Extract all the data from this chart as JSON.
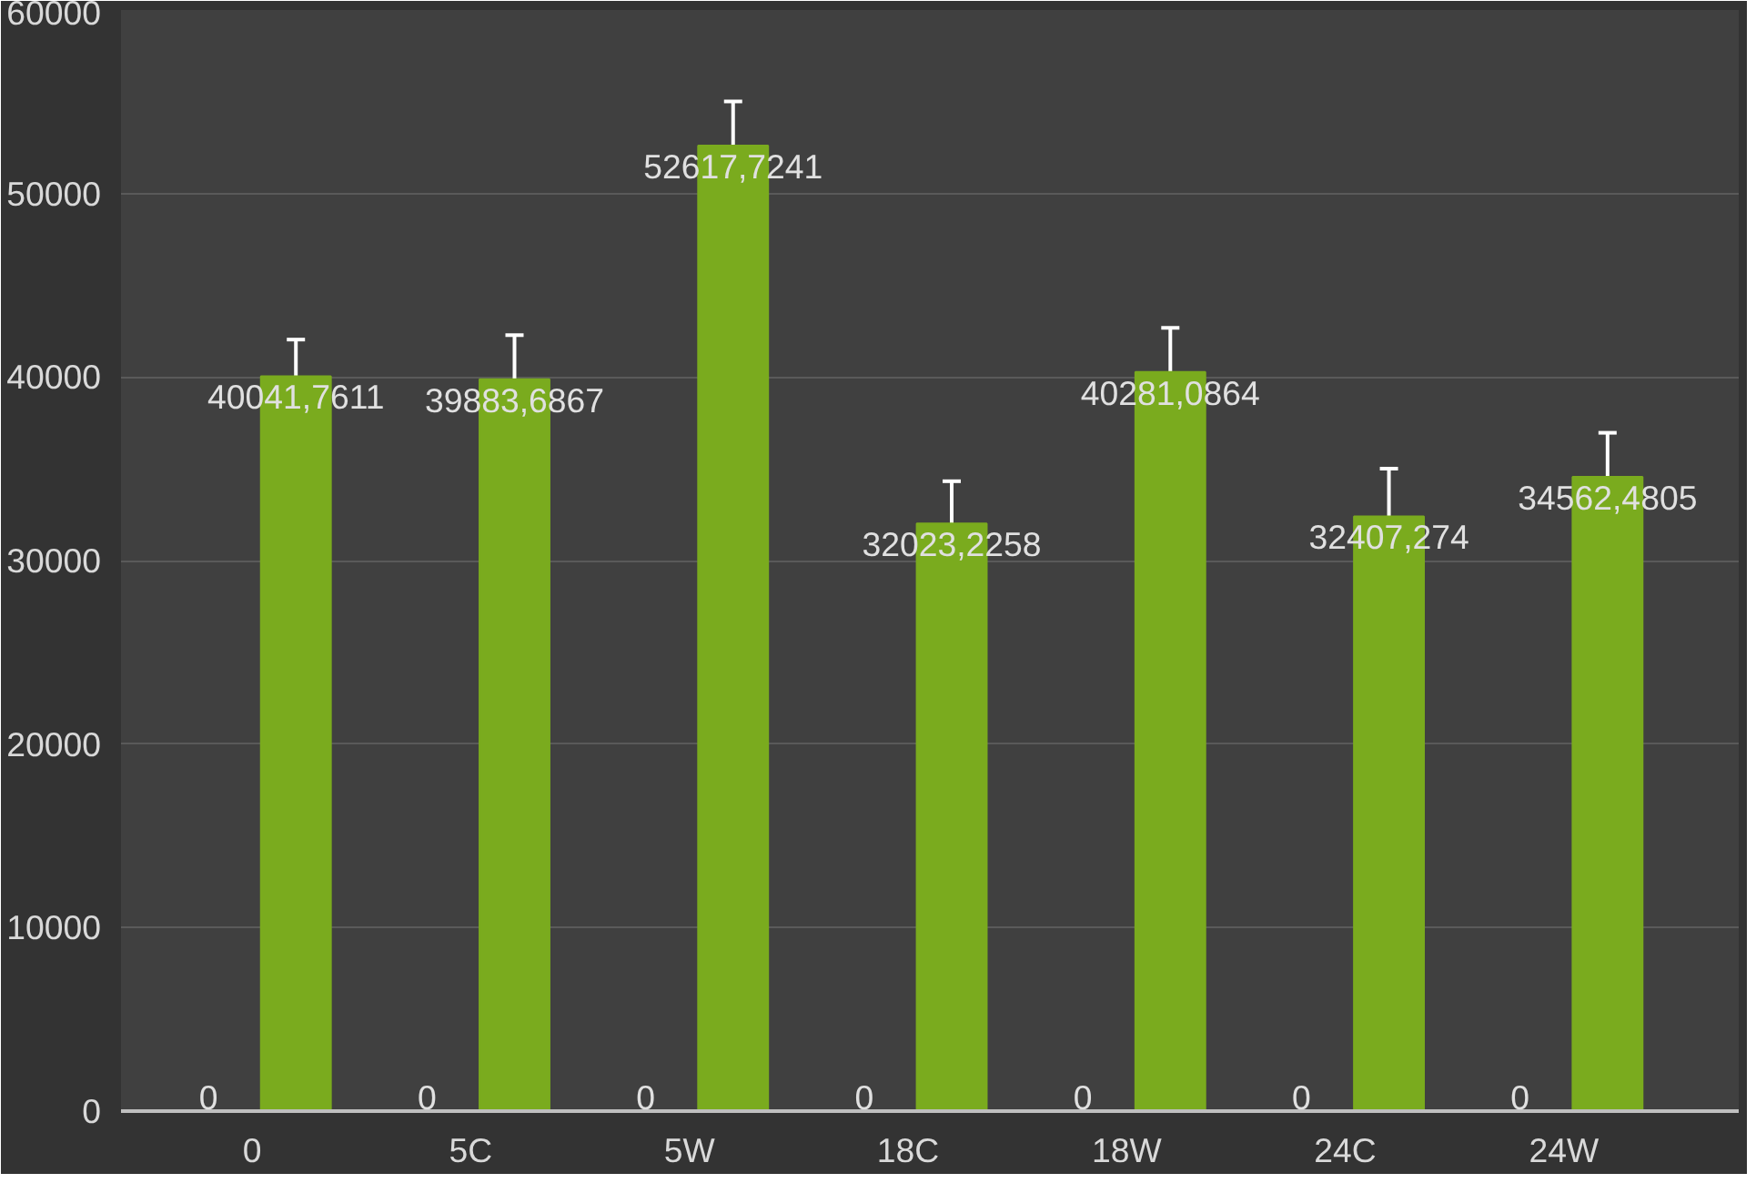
{
  "chart_data": {
    "type": "bar",
    "categories": [
      "0",
      "5C",
      "5W",
      "18C",
      "18W",
      "24C",
      "24W"
    ],
    "series": [
      {
        "color": "#4472c4",
        "values": [
          0,
          0,
          0,
          0,
          0,
          0,
          0
        ],
        "value_labels": [
          "0",
          "0",
          "0",
          "0",
          "0",
          "0",
          "0"
        ]
      },
      {
        "color": "#7aab1e",
        "values": [
          40041.7611,
          39883.6867,
          52617.7241,
          32023.2258,
          40281.0864,
          32407.274,
          34562.4805
        ],
        "value_labels": [
          "40041,7611",
          "39883,6867",
          "52617,7241",
          "32023,2258",
          "40281,0864",
          "32407,274",
          "34562,4805"
        ],
        "errors": [
          2000,
          2400,
          2400,
          2300,
          2400,
          2600,
          2400
        ]
      }
    ],
    "ylim": [
      0,
      60000
    ],
    "yticks": [
      0,
      10000,
      20000,
      30000,
      40000,
      50000,
      60000
    ],
    "grid": "y"
  }
}
